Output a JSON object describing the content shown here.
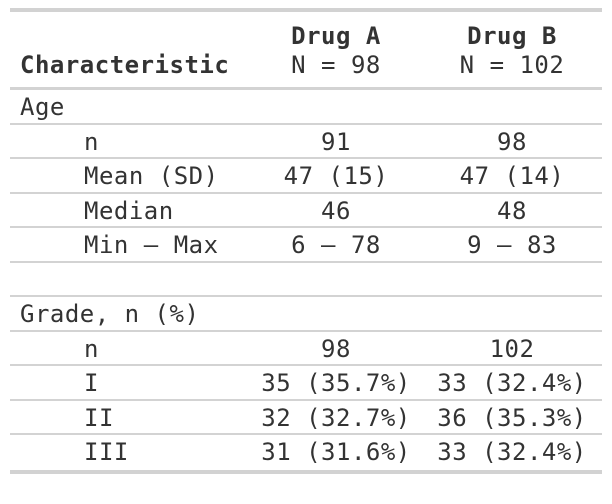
{
  "colors": {
    "text": "#333333",
    "border_light": "#D3D3D3",
    "border_heavy": "#D2D2D2",
    "background": "#FFFFFF"
  },
  "chart_data": {
    "type": "table",
    "header": {
      "characteristic": "Characteristic",
      "groups": [
        {
          "name": "Drug A",
          "n_label": "N = 98"
        },
        {
          "name": "Drug B",
          "n_label": "N = 102"
        }
      ]
    },
    "rows": [
      {
        "type": "group",
        "label": "Age",
        "values": [
          "",
          ""
        ]
      },
      {
        "type": "data",
        "label": "n",
        "values": [
          "91",
          "98"
        ]
      },
      {
        "type": "data",
        "label": "Mean (SD)",
        "values": [
          "47 (15)",
          "47 (14)"
        ]
      },
      {
        "type": "data",
        "label": "Median",
        "values": [
          "46",
          "48"
        ]
      },
      {
        "type": "data",
        "label": "Min – Max",
        "values": [
          "6 – 78",
          "9 – 83"
        ]
      },
      {
        "type": "blank",
        "label": "",
        "values": [
          "",
          ""
        ]
      },
      {
        "type": "group",
        "label": "Grade, n (%)",
        "values": [
          "",
          ""
        ]
      },
      {
        "type": "data",
        "label": "n",
        "values": [
          "98",
          "102"
        ]
      },
      {
        "type": "data",
        "label": "I",
        "values": [
          "35 (35.7%)",
          "33 (32.4%)"
        ]
      },
      {
        "type": "data",
        "label": "II",
        "values": [
          "32 (32.7%)",
          "36 (35.3%)"
        ]
      },
      {
        "type": "data",
        "label": "III",
        "values": [
          "31 (31.6%)",
          "33 (32.4%)"
        ]
      }
    ]
  }
}
